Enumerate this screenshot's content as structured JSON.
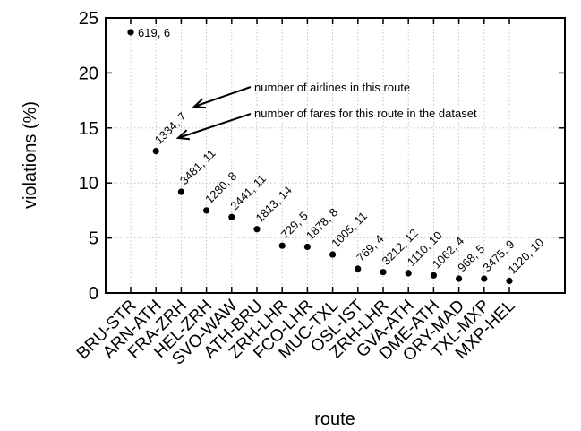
{
  "chart_data": {
    "type": "scatter",
    "xlabel": "route",
    "ylabel": "violations (%)",
    "ylim": [
      0,
      25
    ],
    "yticks": [
      0,
      5,
      10,
      15,
      20,
      25
    ],
    "grid": true,
    "categories": [
      "BRU-STR",
      "ARN-ATH",
      "FRA-ZRH",
      "HEL-ZRH",
      "SVO-WAW",
      "ATH-BRU",
      "ZRH-LHR",
      "FCO-LHR",
      "MUC-TXL",
      "OSL-IST",
      "ZRH-LHR",
      "GVA-ATH",
      "DME-ATH",
      "ORY-MAD",
      "TXL-MXP",
      "MXP-HEL"
    ],
    "values": [
      23.7,
      12.9,
      9.2,
      7.5,
      6.9,
      5.8,
      4.3,
      4.2,
      3.5,
      2.2,
      1.9,
      1.8,
      1.6,
      1.3,
      1.3,
      1.1
    ],
    "point_labels": [
      "619, 6",
      "1334, 7",
      "3481, 11",
      "1280, 8",
      "2441, 11",
      "1813, 14",
      "729, 5",
      "1878, 8",
      "1005, 11",
      "769, 4",
      "3212, 12",
      "1110, 10",
      "1062, 4",
      "968, 5",
      "3475, 9",
      "1120, 10"
    ],
    "annotations": [
      {
        "text": "number of airlines in this route"
      },
      {
        "text": "number of fares for this route in the dataset"
      }
    ]
  }
}
